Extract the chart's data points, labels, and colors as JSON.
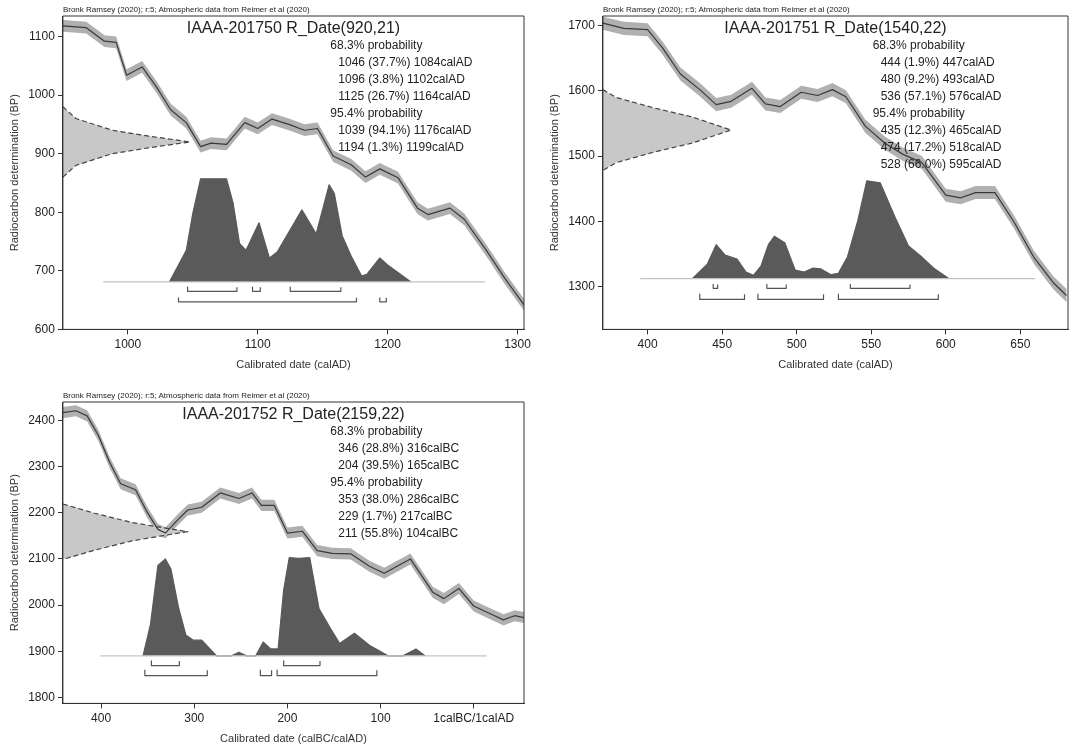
{
  "chart_data": [
    {
      "type": "line",
      "title": "IAAA-201750 R_Date(920,21)",
      "subtitle": "Bronk Ramsey (2020); r:5; Atmospheric data from Reimer et al (2020)",
      "xlabel": "Calibrated date (calAD)",
      "ylabel": "Radiocarbon determination (BP)",
      "xlim": [
        950,
        1305
      ],
      "xticks": [
        1000,
        1100,
        1200,
        1300
      ],
      "ylim": [
        600,
        1135
      ],
      "yticks": [
        600,
        700,
        800,
        900,
        1000,
        1100
      ],
      "grid": false,
      "legend": false,
      "marker": "none",
      "annotations": [
        "68.3% probability",
        "1046 (37.7%) 1084calAD",
        "1096 (3.8%) 1102calAD",
        "1125 (26.7%) 1164calAD",
        "95.4% probability",
        "1039 (94.1%) 1176calAD",
        "1194 (1.3%) 1199calAD"
      ],
      "series": [
        {
          "type": "line",
          "color": "#3a3a3a",
          "x": [
            950,
            968,
            982,
            991,
            999,
            1011,
            1022,
            1033,
            1045,
            1056,
            1064,
            1076,
            1090,
            1100,
            1111,
            1124,
            1136,
            1146,
            1158,
            1172,
            1183,
            1194,
            1208,
            1223,
            1231,
            1248,
            1259,
            1276,
            1290,
            1305
          ],
          "values": [
            1118,
            1115,
            1092,
            1090,
            1034,
            1048,
            1014,
            975,
            953,
            912,
            918,
            916,
            953,
            943,
            959,
            950,
            940,
            943,
            896,
            881,
            860,
            874,
            859,
            807,
            796,
            807,
            788,
            735,
            688,
            642
          ],
          "lower": [
            1108,
            1105,
            1082,
            1080,
            1024,
            1038,
            1004,
            965,
            943,
            902,
            908,
            906,
            943,
            933,
            949,
            940,
            930,
            933,
            886,
            871,
            850,
            864,
            849,
            797,
            786,
            797,
            778,
            725,
            678,
            632
          ],
          "upper": [
            1128,
            1125,
            1102,
            1100,
            1044,
            1058,
            1024,
            985,
            963,
            922,
            928,
            926,
            963,
            953,
            969,
            960,
            950,
            953,
            906,
            891,
            870,
            884,
            869,
            817,
            806,
            817,
            798,
            745,
            698,
            652
          ]
        },
        {
          "type": "area",
          "line_style": "dashed",
          "color": "#c8c8c8",
          "x": [
            950,
            960,
            988,
            1016,
            1048,
            1016,
            988,
            960,
            950
          ],
          "values": [
            980,
            960,
            940,
            930,
            920,
            910,
            900,
            880,
            860
          ]
        },
        {
          "type": "line",
          "color": "#c4c4c4",
          "x": [
            981,
            1275
          ],
          "values": [
            681,
            681
          ]
        },
        {
          "type": "area",
          "color": "#5a5a5a",
          "x": [
            1032,
            1045,
            1050,
            1056,
            1076,
            1081,
            1086,
            1091,
            1101,
            1109,
            1115,
            1134,
            1145,
            1155,
            1159,
            1165,
            1172,
            1180,
            1184,
            1194,
            1200,
            1218
          ],
          "values": [
            681,
            735,
            798,
            857,
            857,
            816,
            747,
            735,
            782,
            722,
            732,
            804,
            763,
            847,
            832,
            760,
            725,
            691,
            694,
            722,
            710,
            681
          ]
        },
        {
          "type": "line",
          "color": "#555555",
          "x": [
            1046,
            1046,
            1084,
            1084,
            null,
            1096,
            1096,
            1102,
            1102,
            null,
            1125,
            1125,
            1164,
            1164
          ],
          "values": [
            672,
            665,
            665,
            672,
            null,
            672,
            665,
            665,
            672,
            null,
            672,
            665,
            665,
            672
          ]
        },
        {
          "type": "line",
          "color": "#555555",
          "x": [
            1039,
            1039,
            1176,
            1176,
            null,
            1194,
            1194,
            1199,
            1199
          ],
          "values": [
            654,
            647,
            647,
            654,
            null,
            654,
            647,
            647,
            654
          ]
        }
      ]
    },
    {
      "type": "line",
      "title": "IAAA-201751 R_Date(1540,22)",
      "subtitle": "Bronk Ramsey (2020); r:5; Atmospheric data from Reimer et al (2020)",
      "xlabel": "Calibrated date (calAD)",
      "ylabel": "Radiocarbon determination (BP)",
      "xlim": [
        370,
        682
      ],
      "xticks": [
        400,
        450,
        500,
        550,
        600,
        650
      ],
      "ylim": [
        1234,
        1715
      ],
      "yticks": [
        1300,
        1400,
        1500,
        1600,
        1700
      ],
      "grid": false,
      "legend": false,
      "marker": "none",
      "annotations": [
        "68.3% probability",
        "444 (1.9%) 447calAD",
        "480 (9.2%) 493calAD",
        "536 (57.1%) 576calAD",
        "95.4% probability",
        "435 (12.3%) 465calAD",
        "474 (17.2%) 518calAD",
        "528 (66.0%) 595calAD"
      ],
      "series": [
        {
          "type": "line",
          "color": "#3a3a3a",
          "x": [
            370,
            384,
            400,
            410,
            422,
            435,
            446,
            456,
            470,
            479,
            489,
            503,
            514,
            524,
            533,
            546,
            559,
            571,
            584,
            600,
            610,
            620,
            633,
            646,
            659,
            672,
            681
          ],
          "values": [
            1704,
            1696,
            1694,
            1666,
            1626,
            1602,
            1579,
            1584,
            1604,
            1580,
            1576,
            1598,
            1593,
            1602,
            1591,
            1546,
            1520,
            1503,
            1490,
            1440,
            1436,
            1444,
            1444,
            1398,
            1345,
            1306,
            1286
          ],
          "lower": [
            1694,
            1686,
            1684,
            1656,
            1616,
            1592,
            1569,
            1574,
            1594,
            1570,
            1566,
            1588,
            1583,
            1592,
            1581,
            1536,
            1510,
            1493,
            1480,
            1430,
            1426,
            1434,
            1434,
            1388,
            1335,
            1296,
            1276
          ],
          "upper": [
            1714,
            1706,
            1704,
            1676,
            1636,
            1612,
            1589,
            1594,
            1614,
            1590,
            1586,
            1608,
            1603,
            1612,
            1601,
            1556,
            1530,
            1513,
            1500,
            1450,
            1446,
            1454,
            1454,
            1408,
            1355,
            1316,
            1296
          ]
        },
        {
          "type": "area",
          "line_style": "dashed",
          "color": "#c8c8c8",
          "x": [
            370,
            379,
            404,
            430,
            456,
            430,
            404,
            379,
            370
          ],
          "values": [
            1602,
            1590,
            1574,
            1560,
            1540,
            1520,
            1506,
            1490,
            1478
          ]
        },
        {
          "type": "line",
          "color": "#c4c4c4",
          "x": [
            395,
            660
          ],
          "values": [
            1312,
            1312
          ]
        },
        {
          "type": "area",
          "color": "#5a5a5a",
          "x": [
            430,
            440,
            446,
            452,
            460,
            466,
            471,
            476,
            481,
            485,
            492,
            499,
            505,
            511,
            516,
            523,
            528,
            534,
            541,
            547,
            556,
            566,
            575,
            584,
            592,
            602
          ],
          "values": [
            1312,
            1334,
            1364,
            1348,
            1342,
            1322,
            1317,
            1331,
            1364,
            1377,
            1367,
            1325,
            1322,
            1328,
            1327,
            1318,
            1320,
            1345,
            1401,
            1462,
            1459,
            1406,
            1362,
            1345,
            1328,
            1312
          ]
        },
        {
          "type": "line",
          "color": "#555555",
          "x": [
            444,
            444,
            447,
            447,
            null,
            480,
            480,
            493,
            493,
            null,
            536,
            536,
            576,
            576
          ],
          "values": [
            1303,
            1297,
            1297,
            1303,
            null,
            1303,
            1297,
            1297,
            1303,
            null,
            1303,
            1297,
            1297,
            1303
          ]
        },
        {
          "type": "line",
          "color": "#555555",
          "x": [
            435,
            435,
            465,
            465,
            null,
            474,
            474,
            518,
            518,
            null,
            528,
            528,
            595,
            595
          ],
          "values": [
            1288,
            1280,
            1280,
            1288,
            null,
            1288,
            1280,
            1280,
            1288,
            null,
            1288,
            1280,
            1280,
            1288
          ]
        }
      ]
    },
    {
      "type": "line",
      "title": "IAAA-201752 R_Date(2159,22)",
      "subtitle": "Bronk Ramsey (2020); r:5; Atmospheric data from Reimer et al (2020)",
      "xlabel": "Calibrated date (calBC/calAD)",
      "ylabel": "Radiocarbon determination (BP)",
      "xlim": [
        441,
        -54
      ],
      "xticks": [
        400,
        300,
        200,
        100,
        {
          "value": 0,
          "label": "1calBC/1calAD"
        }
      ],
      "ylim": [
        1787,
        2440
      ],
      "yticks": [
        1800,
        1900,
        2000,
        2100,
        2200,
        2300,
        2400
      ],
      "grid": false,
      "legend": false,
      "marker": "none",
      "annotations": [
        "68.3% probability",
        "346 (28.8%) 316calBC",
        "204 (39.5%) 165calBC",
        "95.4% probability",
        "353 (38.0%) 286calBC",
        "229 (1.7%) 217calBC",
        "211 (55.8%) 104calBC"
      ],
      "series": [
        {
          "type": "line",
          "color": "#3a3a3a",
          "x": [
            441,
            427,
            415,
            403,
            391,
            379,
            363,
            351,
            339,
            331,
            319,
            307,
            292,
            272,
            252,
            238,
            228,
            214,
            200,
            184,
            168,
            152,
            132,
            112,
            96,
            68,
            44,
            32,
            16,
            0,
            -20,
            -32,
            -44,
            -54
          ],
          "values": [
            2417,
            2421,
            2410,
            2368,
            2310,
            2263,
            2250,
            2203,
            2164,
            2156,
            2182,
            2206,
            2212,
            2243,
            2231,
            2243,
            2216,
            2216,
            2156,
            2160,
            2118,
            2112,
            2111,
            2084,
            2069,
            2100,
            2028,
            2014,
            2036,
            1998,
            1979,
            1968,
            1977,
            1973
          ],
          "lower": [
            2405,
            2409,
            2398,
            2356,
            2298,
            2251,
            2238,
            2191,
            2152,
            2144,
            2170,
            2194,
            2200,
            2231,
            2219,
            2231,
            2204,
            2204,
            2144,
            2148,
            2106,
            2100,
            2099,
            2072,
            2057,
            2088,
            2016,
            2002,
            2024,
            1986,
            1967,
            1956,
            1965,
            1961
          ],
          "upper": [
            2429,
            2433,
            2422,
            2380,
            2322,
            2275,
            2262,
            2215,
            2176,
            2168,
            2194,
            2218,
            2224,
            2255,
            2243,
            2255,
            2228,
            2228,
            2168,
            2172,
            2130,
            2124,
            2123,
            2096,
            2081,
            2112,
            2040,
            2026,
            2048,
            2010,
            1991,
            1980,
            1989,
            1985
          ]
        },
        {
          "type": "area",
          "line_style": "dashed",
          "color": "#c8c8c8",
          "x": [
            441,
            407,
            367,
            335,
            307,
            335,
            367,
            407,
            441
          ],
          "values": [
            2219,
            2199,
            2179,
            2168,
            2159,
            2150,
            2139,
            2119,
            2099
          ]
        },
        {
          "type": "line",
          "color": "#c4c4c4",
          "x": [
            401,
            -14
          ],
          "values": [
            1890,
            1890
          ]
        },
        {
          "type": "area",
          "color": "#5a5a5a",
          "x": [
            355,
            347,
            339,
            331,
            325,
            317,
            309,
            301,
            292,
            276,
            260,
            252,
            244,
            234,
            226,
            218,
            210,
            204,
            198,
            188,
            176,
            166,
            154,
            144,
            128,
            112,
            92,
            76,
            62,
            52
          ],
          "values": [
            1890,
            1958,
            2086,
            2100,
            2078,
            1996,
            1935,
            1924,
            1924,
            1890,
            1890,
            1898,
            1890,
            1890,
            1920,
            1905,
            1905,
            2033,
            2103,
            2101,
            2103,
            1992,
            1950,
            1917,
            1939,
            1913,
            1890,
            1890,
            1905,
            1890
          ]
        },
        {
          "type": "line",
          "color": "#555555",
          "x": [
            346,
            346,
            316,
            316,
            null,
            204,
            204,
            165,
            165
          ],
          "values": [
            1879,
            1869,
            1869,
            1879,
            null,
            1879,
            1869,
            1869,
            1879
          ]
        },
        {
          "type": "line",
          "color": "#555555",
          "x": [
            353,
            353,
            286,
            286,
            null,
            229,
            229,
            217,
            217,
            null,
            211,
            211,
            104,
            104
          ],
          "values": [
            1859,
            1847,
            1847,
            1859,
            null,
            1859,
            1847,
            1847,
            1859,
            null,
            1859,
            1847,
            1847,
            1859
          ]
        }
      ]
    }
  ]
}
